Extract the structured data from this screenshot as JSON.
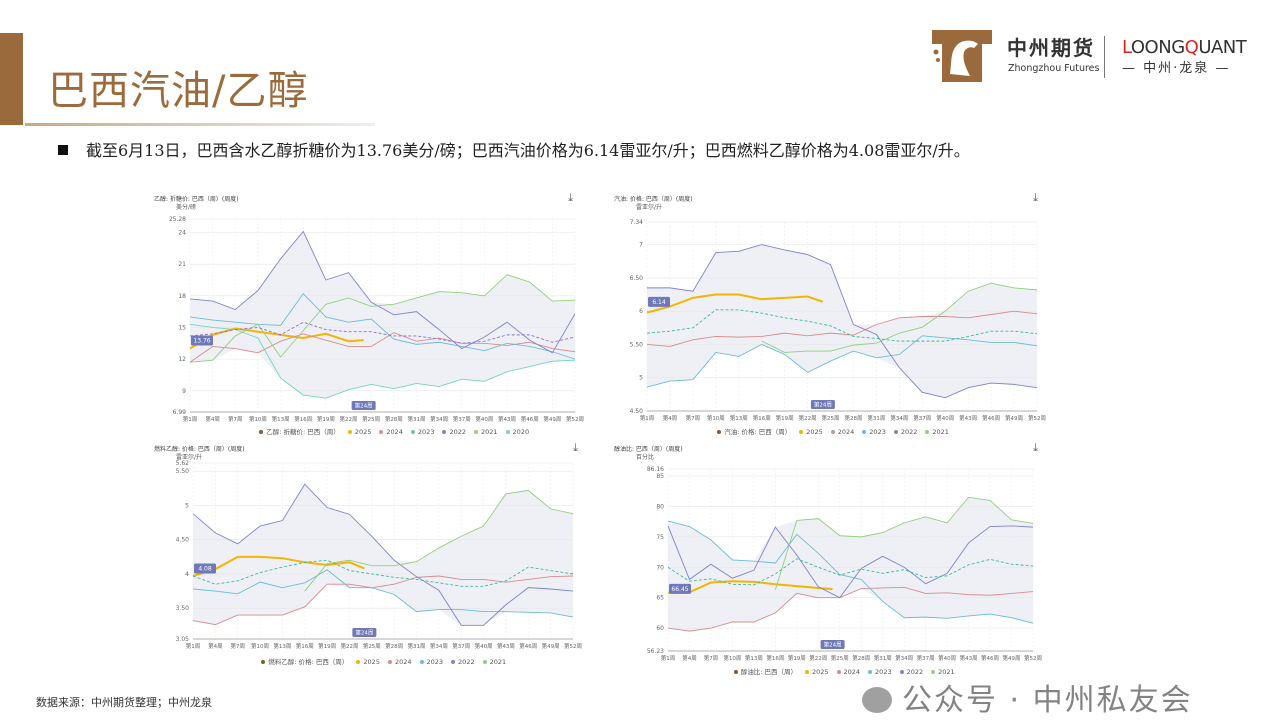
{
  "header": {
    "title": "巴西汽油/乙醇",
    "summary": "截至6月13日，巴西含水乙醇折糖价为13.76美分/磅；巴西汽油价格为6.14雷亚尔/升；巴西燃料乙醇价格为4.08雷亚尔/升。",
    "brand_cn": "中州期货",
    "brand_en": "Zhongzhou Futures",
    "brand2_prefix": "L",
    "brand2_mid": "OONG",
    "brand2_q": "Q",
    "brand2_rest": "UANT",
    "brand2_sub": "— 中州·龙泉 —"
  },
  "footer": {
    "source": "数据来源：中州期货整理；中州龙泉"
  },
  "watermark": {
    "text": "公众号 · 中州私友会"
  },
  "colors": {
    "2025": "#f5b400",
    "2024": "#d98c8c",
    "2023": "#6cbcd8",
    "2022": "#7f82d2",
    "2021": "#8fd07c",
    "2020": "#72d6bd",
    "range": "#eef0f6",
    "brand": "#9c6b3c"
  },
  "chart_data": [
    {
      "type": "line",
      "title": "乙醇: 折糖价: 巴西（周）(周度)",
      "ylabel": "美分/磅",
      "ylim": [
        6.99,
        25.28
      ],
      "yticks": [
        "6.99",
        "9",
        "12",
        "15",
        "18",
        "21",
        "24",
        "25.28"
      ],
      "current_label": "13.76",
      "current_value": 13.76,
      "highlight_x": "第24周",
      "highlight_week": 24,
      "mean_color": "#8b70d4",
      "legend": [
        "乙醇: 折糖价: 巴西（周）",
        "2025",
        "2024",
        "2023",
        "2022",
        "2021",
        "2020"
      ],
      "x": [
        1,
        4,
        7,
        10,
        13,
        16,
        19,
        22,
        25,
        28,
        31,
        34,
        37,
        40,
        43,
        46,
        49,
        52
      ],
      "xticks": [
        "第1周",
        "第4周",
        "第7周",
        "第10周",
        "第13周",
        "第16周",
        "第19周",
        "第22周",
        "第25周",
        "第28周",
        "第31周",
        "第34周",
        "第37周",
        "第40周",
        "第43周",
        "第46周",
        "第49周",
        "第52周"
      ],
      "series": [
        {
          "name": "2025",
          "x": [
            1,
            4,
            7,
            10,
            13,
            16,
            19,
            22,
            24
          ],
          "values": [
            13.0,
            14.3,
            14.9,
            14.6,
            14.3,
            14.0,
            14.4,
            13.7,
            13.8
          ]
        },
        {
          "name": "2024",
          "values": [
            11.7,
            13.2,
            13.0,
            12.6,
            13.7,
            14.4,
            13.8,
            13.2,
            13.2,
            14.5,
            13.7,
            14.0,
            13.5,
            13.5,
            13.3,
            13.6,
            13.0,
            12.7
          ]
        },
        {
          "name": "2023",
          "values": [
            16.0,
            15.7,
            15.5,
            15.3,
            15.2,
            18.2,
            16.0,
            15.5,
            15.8,
            13.9,
            13.4,
            13.6,
            13.2,
            12.8,
            13.5,
            13.2,
            12.7,
            12.0
          ]
        },
        {
          "name": "2022",
          "values": [
            17.7,
            17.5,
            16.7,
            18.5,
            21.5,
            24.1,
            19.5,
            20.2,
            17.4,
            16.2,
            16.5,
            14.8,
            13.0,
            14.1,
            15.5,
            13.8,
            12.6,
            16.3
          ]
        },
        {
          "name": "2021",
          "values": [
            11.7,
            11.9,
            14.2,
            15.3,
            12.2,
            14.7,
            17.2,
            17.8,
            17.0,
            17.2,
            17.8,
            18.4,
            18.3,
            18.0,
            20.0,
            19.3,
            17.5,
            17.6
          ]
        },
        {
          "name": "2020",
          "values": [
            15.3,
            15.0,
            14.8,
            14.0,
            10.2,
            8.6,
            8.3,
            9.1,
            9.6,
            9.2,
            9.7,
            9.4,
            10.1,
            9.9,
            10.8,
            11.3,
            11.8,
            11.9
          ]
        },
        {
          "name": "mean",
          "dashed": true,
          "values": [
            14.2,
            14.4,
            14.8,
            15.0,
            14.3,
            15.5,
            14.8,
            14.6,
            14.6,
            14.2,
            14.2,
            13.9,
            13.5,
            13.7,
            14.3,
            14.3,
            13.6,
            14.1
          ]
        }
      ]
    },
    {
      "type": "line",
      "title": "汽油: 价格: 巴西（周）(周度)",
      "ylabel": "雷亚尔/升",
      "ylim": [
        4.5,
        7.34
      ],
      "yticks": [
        "4.50",
        "5",
        "5.50",
        "6",
        "6.50",
        "7",
        "7.34"
      ],
      "current_label": "6.14",
      "current_value": 6.14,
      "highlight_x": "第24周",
      "highlight_week": 24,
      "mean_color": "#3fb89a",
      "legend": [
        "汽油: 价格: 巴西（周）",
        "2025",
        "2024",
        "2023",
        "2022",
        "2021"
      ],
      "x": [
        1,
        4,
        7,
        10,
        13,
        16,
        19,
        22,
        25,
        28,
        31,
        34,
        37,
        40,
        43,
        46,
        49,
        52
      ],
      "xticks": [
        "第1周",
        "第4周",
        "第7周",
        "第10周",
        "第13周",
        "第16周",
        "第19周",
        "第22周",
        "第25周",
        "第28周",
        "第31周",
        "第34周",
        "第37周",
        "第40周",
        "第43周",
        "第46周",
        "第49周",
        "第52周"
      ],
      "series": [
        {
          "name": "2025",
          "x": [
            1,
            4,
            7,
            10,
            13,
            16,
            19,
            22,
            24
          ],
          "values": [
            5.98,
            6.07,
            6.2,
            6.25,
            6.25,
            6.18,
            6.2,
            6.22,
            6.14
          ]
        },
        {
          "name": "2024",
          "values": [
            5.5,
            5.47,
            5.57,
            5.62,
            5.61,
            5.62,
            5.67,
            5.63,
            5.67,
            5.64,
            5.8,
            5.9,
            5.92,
            5.92,
            5.9,
            5.95,
            6.0,
            5.96
          ]
        },
        {
          "name": "2023",
          "values": [
            4.86,
            4.95,
            4.97,
            5.38,
            5.32,
            5.5,
            5.35,
            5.08,
            5.25,
            5.4,
            5.3,
            5.35,
            5.63,
            5.6,
            5.57,
            5.53,
            5.53,
            5.48
          ]
        },
        {
          "name": "2022",
          "values": [
            6.35,
            6.35,
            6.3,
            6.88,
            6.9,
            7.0,
            6.92,
            6.85,
            6.7,
            5.8,
            5.65,
            5.15,
            4.78,
            4.7,
            4.85,
            4.92,
            4.9,
            4.85
          ]
        },
        {
          "name": "2021",
          "values": [
            null,
            null,
            null,
            null,
            null,
            5.55,
            5.38,
            5.4,
            5.4,
            5.49,
            5.52,
            5.67,
            5.76,
            6.0,
            6.3,
            6.42,
            6.35,
            6.32
          ]
        },
        {
          "name": "mean",
          "dashed": true,
          "values": [
            5.67,
            5.7,
            5.75,
            6.02,
            6.02,
            5.97,
            5.9,
            5.85,
            5.78,
            5.62,
            5.59,
            5.55,
            5.55,
            5.55,
            5.62,
            5.7,
            5.7,
            5.66
          ]
        }
      ]
    },
    {
      "type": "line",
      "title": "燃料乙醇: 价格: 巴西（周）(周度)",
      "ylabel": "雷亚尔/升",
      "ylim": [
        3.05,
        5.62
      ],
      "yticks": [
        "3.05",
        "3.50",
        "4",
        "4.50",
        "5",
        "5.50",
        "5.62"
      ],
      "current_label": "4.08",
      "current_value": 4.08,
      "highlight_x": "第24周",
      "highlight_week": 24,
      "mean_color": "#3fb89a",
      "legend": [
        "燃料乙醇: 价格: 巴西（周）",
        "2025",
        "2024",
        "2023",
        "2022",
        "2021"
      ],
      "x": [
        1,
        4,
        7,
        10,
        13,
        16,
        19,
        22,
        25,
        28,
        31,
        34,
        37,
        40,
        43,
        46,
        49,
        52
      ],
      "xticks": [
        "第1周",
        "第4周",
        "第7周",
        "第10周",
        "第13周",
        "第16周",
        "第19周",
        "第22周",
        "第25周",
        "第28周",
        "第31周",
        "第34周",
        "第37周",
        "第40周",
        "第43周",
        "第46周",
        "第49周",
        "第52周"
      ],
      "series": [
        {
          "name": "2025",
          "x": [
            1,
            4,
            7,
            10,
            13,
            16,
            19,
            22,
            24
          ],
          "values": [
            3.97,
            4.07,
            4.25,
            4.25,
            4.23,
            4.17,
            4.13,
            4.17,
            4.08
          ]
        },
        {
          "name": "2024",
          "values": [
            3.32,
            3.26,
            3.4,
            3.4,
            3.4,
            3.52,
            3.85,
            3.85,
            3.8,
            3.85,
            3.95,
            3.97,
            3.92,
            3.92,
            3.88,
            3.92,
            3.96,
            3.97
          ]
        },
        {
          "name": "2023",
          "values": [
            3.78,
            3.75,
            3.71,
            3.88,
            3.8,
            3.87,
            4.06,
            3.8,
            3.8,
            3.7,
            3.45,
            3.48,
            3.48,
            3.45,
            3.45,
            3.44,
            3.43,
            3.37
          ]
        },
        {
          "name": "2022",
          "values": [
            4.88,
            4.6,
            4.44,
            4.7,
            4.78,
            5.31,
            4.97,
            4.87,
            4.55,
            4.2,
            3.96,
            3.76,
            3.25,
            3.25,
            3.55,
            3.8,
            3.78,
            3.75
          ]
        },
        {
          "name": "2021",
          "values": [
            null,
            null,
            null,
            null,
            null,
            3.75,
            4.15,
            4.2,
            4.12,
            4.12,
            4.18,
            4.38,
            4.55,
            4.7,
            5.17,
            5.22,
            4.95,
            4.88
          ]
        },
        {
          "name": "mean",
          "dashed": true,
          "values": [
            3.97,
            3.85,
            3.9,
            4.02,
            4.1,
            4.17,
            4.2,
            4.05,
            4.0,
            3.95,
            3.92,
            3.87,
            3.82,
            3.82,
            3.9,
            4.1,
            4.05,
            4.0
          ]
        }
      ]
    },
    {
      "type": "line",
      "title": "醇油比: 巴西（周）(周度)",
      "ylabel": "百分比",
      "ylim": [
        56.23,
        86.16
      ],
      "yticks": [
        "56.23",
        "60",
        "65",
        "70",
        "75",
        "80",
        "85",
        "86.16"
      ],
      "current_label": "66.45",
      "current_value": 66.45,
      "highlight_x": "第24周",
      "highlight_week": 24,
      "mean_color": "#3fb89a",
      "legend": [
        "醇油比: 巴西（周）",
        "2025",
        "2024",
        "2023",
        "2022",
        "2021"
      ],
      "x": [
        1,
        4,
        7,
        10,
        13,
        16,
        19,
        22,
        25,
        28,
        31,
        34,
        37,
        40,
        43,
        46,
        49,
        52
      ],
      "xticks": [
        "第1周",
        "第4周",
        "第7周",
        "第10周",
        "第13周",
        "第16周",
        "第19周",
        "第22周",
        "第25周",
        "第28周",
        "第31周",
        "第34周",
        "第37周",
        "第40周",
        "第43周",
        "第46周",
        "第49周",
        "第52周"
      ],
      "series": [
        {
          "name": "2025",
          "x": [
            1,
            4,
            7,
            10,
            13,
            16,
            19,
            22,
            24
          ],
          "values": [
            65.8,
            65.9,
            67.5,
            67.7,
            67.6,
            67.2,
            66.9,
            66.6,
            66.4
          ]
        },
        {
          "name": "2024",
          "values": [
            60.0,
            59.5,
            60.0,
            61.0,
            61.0,
            62.5,
            65.7,
            65.0,
            65.0,
            66.5,
            66.6,
            66.7,
            65.7,
            65.8,
            65.5,
            65.4,
            65.7,
            66.0
          ]
        },
        {
          "name": "2023",
          "values": [
            77.6,
            76.7,
            74.5,
            71.2,
            71.0,
            70.7,
            75.4,
            72.3,
            68.8,
            68.0,
            64.4,
            61.7,
            61.8,
            61.6,
            62.0,
            62.3,
            61.7,
            60.8
          ]
        },
        {
          "name": "2022",
          "values": [
            76.8,
            68.0,
            70.5,
            68.2,
            69.5,
            76.6,
            72.0,
            66.8,
            65.0,
            69.8,
            71.8,
            70.0,
            67.3,
            69.0,
            74.0,
            76.7,
            76.8,
            76.6
          ]
        },
        {
          "name": "2021",
          "values": [
            null,
            null,
            null,
            null,
            null,
            66.3,
            77.7,
            78.0,
            75.2,
            75.0,
            75.7,
            77.3,
            78.3,
            77.3,
            81.5,
            81.0,
            77.8,
            77.2
          ]
        },
        {
          "name": "mean",
          "dashed": true,
          "values": [
            70.0,
            67.7,
            68.1,
            67.2,
            67.1,
            68.9,
            71.4,
            70.0,
            68.7,
            69.7,
            69.0,
            69.6,
            68.3,
            68.6,
            70.4,
            71.3,
            70.5,
            70.2
          ]
        }
      ]
    }
  ],
  "download_icon": "download-icon"
}
